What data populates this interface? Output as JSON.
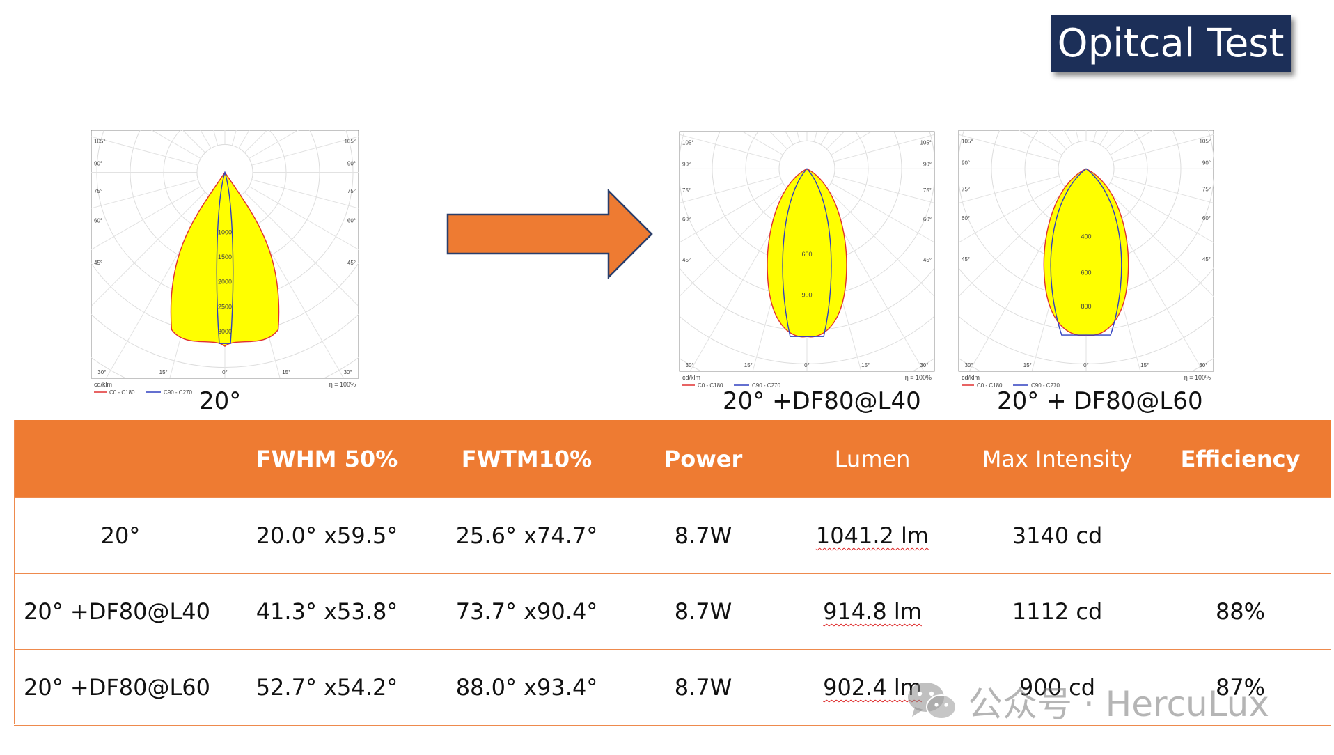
{
  "title": "Opitcal Test",
  "charts": [
    {
      "caption": "20°",
      "unit_label": "cd/klm",
      "efficiency_label": "η = 100%",
      "legend": [
        "C0 - C180",
        "C90 - C270"
      ],
      "angle_labels_top": [
        "105°",
        "90°",
        "75°",
        "60°",
        "45°"
      ],
      "angle_labels_bottom": [
        "30°",
        "15°",
        "0°",
        "15°",
        "30°"
      ],
      "radial_labels": [
        "1000",
        "1500",
        "2000",
        "2500",
        "3000"
      ]
    },
    {
      "caption": "20°  +DF80@L40",
      "unit_label": "cd/klm",
      "efficiency_label": "η = 100%",
      "legend": [
        "C0 - C180",
        "C90 - C270"
      ],
      "angle_labels_top": [
        "105°",
        "90°",
        "75°",
        "60°",
        "45°"
      ],
      "angle_labels_bottom": [
        "30°",
        "15°",
        "0°",
        "15°",
        "30°"
      ],
      "radial_labels": [
        "600",
        "900"
      ]
    },
    {
      "caption": "20°  + DF80@L60",
      "unit_label": "cd/klm",
      "efficiency_label": "η = 100%",
      "legend": [
        "C0 - C180",
        "C90 - C270"
      ],
      "angle_labels_top": [
        "105°",
        "90°",
        "75°",
        "60°",
        "45°"
      ],
      "angle_labels_bottom": [
        "30°",
        "15°",
        "0°",
        "15°",
        "30°"
      ],
      "radial_labels": [
        "400",
        "600",
        "800"
      ]
    }
  ],
  "table": {
    "headers": [
      "",
      "FWHM 50%",
      "FWTM10%",
      "Power",
      "Lumen",
      "Max Intensity",
      "Efficiency"
    ],
    "rows": [
      [
        "20°",
        "20.0°  x59.5°",
        "25.6°  x74.7°",
        "8.7W",
        "1041.2 lm",
        "3140 cd",
        ""
      ],
      [
        "20°  +DF80@L40",
        "41.3°  x53.8°",
        "73.7°  x90.4°",
        "8.7W",
        "914.8 lm",
        "1112 cd",
        "88%"
      ],
      [
        "20°  +DF80@L60",
        "52.7°  x54.2°",
        "88.0°  x93.4°",
        "8.7W",
        "902.4 lm",
        "900 cd",
        "87%"
      ]
    ]
  },
  "colors": {
    "accent": "#ee7b32",
    "title_bg": "#1c2f58",
    "beam_fill": "#ffff00",
    "c0_line": "#e03030",
    "c90_line": "#3040c0"
  },
  "watermark": {
    "text": "公众号 · HercuLux",
    "icon": "wechat-icon"
  }
}
